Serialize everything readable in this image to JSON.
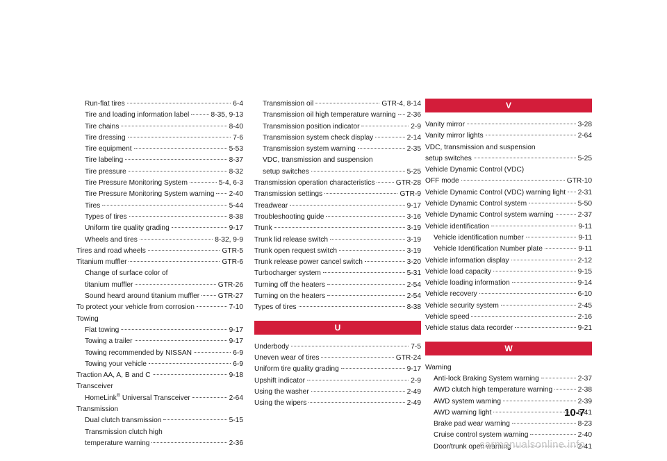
{
  "column1": [
    {
      "type": "entry",
      "indent": true,
      "label": "Run-flat tires",
      "page": "6-4"
    },
    {
      "type": "entry",
      "indent": true,
      "label": "Tire and loading information label",
      "page": "8-35, 9-13"
    },
    {
      "type": "entry",
      "indent": true,
      "label": "Tire chains",
      "page": "8-40"
    },
    {
      "type": "entry",
      "indent": true,
      "label": "Tire dressing",
      "page": "7-6"
    },
    {
      "type": "entry",
      "indent": true,
      "label": "Tire equipment",
      "page": "5-53"
    },
    {
      "type": "entry",
      "indent": true,
      "label": "Tire labeling",
      "page": "8-37"
    },
    {
      "type": "entry",
      "indent": true,
      "label": "Tire pressure",
      "page": "8-32"
    },
    {
      "type": "entry",
      "indent": true,
      "label": "Tire Pressure Monitoring System",
      "page": "5-4, 6-3"
    },
    {
      "type": "entry",
      "indent": true,
      "label": "Tire Pressure Monitoring System warning",
      "page": "2-40"
    },
    {
      "type": "entry",
      "indent": true,
      "label": "Tires",
      "page": "5-44"
    },
    {
      "type": "entry",
      "indent": true,
      "label": "Types of tires",
      "page": "8-38"
    },
    {
      "type": "entry",
      "indent": true,
      "label": "Uniform tire quality grading",
      "page": "9-17"
    },
    {
      "type": "entry",
      "indent": true,
      "label": "Wheels and tires",
      "page": "8-32, 9-9"
    },
    {
      "type": "entry",
      "indent": false,
      "label": "Tires and road wheels",
      "page": "GTR-5"
    },
    {
      "type": "entry",
      "indent": false,
      "label": "Titanium muffler",
      "page": "GTR-6"
    },
    {
      "type": "line",
      "indent": true,
      "text": "Change of surface color of"
    },
    {
      "type": "entry",
      "indent": true,
      "label": "titanium muffler",
      "page": "GTR-26"
    },
    {
      "type": "entry",
      "indent": true,
      "label": "Sound heard around titanium muffler",
      "page": "GTR-27"
    },
    {
      "type": "entry",
      "indent": false,
      "label": "To protect your vehicle from corrosion",
      "page": "7-10"
    },
    {
      "type": "line",
      "indent": false,
      "text": "Towing"
    },
    {
      "type": "entry",
      "indent": true,
      "label": "Flat towing",
      "page": "9-17"
    },
    {
      "type": "entry",
      "indent": true,
      "label": "Towing a trailer",
      "page": "9-17"
    },
    {
      "type": "entry",
      "indent": true,
      "label": "Towing recommended by NISSAN",
      "page": "6-9"
    },
    {
      "type": "entry",
      "indent": true,
      "label": "Towing your vehicle",
      "page": "6-9"
    },
    {
      "type": "entry",
      "indent": false,
      "label": "Traction AA, A, B and C",
      "page": "9-18"
    },
    {
      "type": "line",
      "indent": false,
      "text": "Transceiver"
    },
    {
      "type": "entry",
      "indent": true,
      "label": "HomeLink® Universal Transceiver",
      "page": "2-64"
    },
    {
      "type": "line",
      "indent": false,
      "text": "Transmission"
    },
    {
      "type": "entry",
      "indent": true,
      "label": "Dual clutch transmission",
      "page": "5-15"
    },
    {
      "type": "line",
      "indent": true,
      "text": "Transmission clutch high"
    },
    {
      "type": "entry",
      "indent": true,
      "label": "temperature warning",
      "page": "2-36"
    }
  ],
  "column2": [
    {
      "type": "entry",
      "indent": true,
      "label": "Transmission oil",
      "page": "GTR-4, 8-14"
    },
    {
      "type": "entry",
      "indent": true,
      "label": "Transmission oil high temperature warning",
      "page": "2-36"
    },
    {
      "type": "entry",
      "indent": true,
      "label": "Transmission position indicator",
      "page": "2-9"
    },
    {
      "type": "entry",
      "indent": true,
      "label": "Transmission system check display",
      "page": "2-14"
    },
    {
      "type": "entry",
      "indent": true,
      "label": "Transmission system warning",
      "page": "2-35"
    },
    {
      "type": "line",
      "indent": true,
      "text": "VDC, transmission and suspension"
    },
    {
      "type": "entry",
      "indent": true,
      "label": "setup switches",
      "page": "5-25"
    },
    {
      "type": "entry",
      "indent": false,
      "label": "Transmission operation characteristics",
      "page": "GTR-28"
    },
    {
      "type": "entry",
      "indent": false,
      "label": "Transmission settings",
      "page": "GTR-9"
    },
    {
      "type": "entry",
      "indent": false,
      "label": "Treadwear",
      "page": "9-17"
    },
    {
      "type": "entry",
      "indent": false,
      "label": "Troubleshooting guide",
      "page": "3-16"
    },
    {
      "type": "entry",
      "indent": false,
      "label": "Trunk",
      "page": "3-19"
    },
    {
      "type": "entry",
      "indent": false,
      "label": "Trunk lid release switch",
      "page": "3-19"
    },
    {
      "type": "entry",
      "indent": false,
      "label": "Trunk open request switch",
      "page": "3-19"
    },
    {
      "type": "entry",
      "indent": false,
      "label": "Trunk release power cancel switch",
      "page": "3-20"
    },
    {
      "type": "entry",
      "indent": false,
      "label": "Turbocharger system",
      "page": "5-31"
    },
    {
      "type": "entry",
      "indent": false,
      "label": "Turning off the heaters",
      "page": "2-54"
    },
    {
      "type": "entry",
      "indent": false,
      "label": "Turning on the heaters",
      "page": "2-54"
    },
    {
      "type": "entry",
      "indent": false,
      "label": "Types of tires",
      "page": "8-38"
    },
    {
      "type": "header",
      "text": "U"
    },
    {
      "type": "entry",
      "indent": false,
      "label": "Underbody",
      "page": "7-5"
    },
    {
      "type": "entry",
      "indent": false,
      "label": "Uneven wear of tires",
      "page": "GTR-24"
    },
    {
      "type": "entry",
      "indent": false,
      "label": "Uniform tire quality grading",
      "page": "9-17"
    },
    {
      "type": "entry",
      "indent": false,
      "label": "Upshift indicator",
      "page": "2-9"
    },
    {
      "type": "entry",
      "indent": false,
      "label": "Using the washer",
      "page": "2-49"
    },
    {
      "type": "entry",
      "indent": false,
      "label": "Using the wipers",
      "page": "2-49"
    }
  ],
  "column3": [
    {
      "type": "header",
      "text": "V",
      "first": true
    },
    {
      "type": "entry",
      "indent": false,
      "label": "Vanity mirror",
      "page": "3-28"
    },
    {
      "type": "entry",
      "indent": false,
      "label": "Vanity mirror lights",
      "page": "2-64"
    },
    {
      "type": "line",
      "indent": false,
      "text": "VDC, transmission and suspension"
    },
    {
      "type": "entry",
      "indent": false,
      "label": "setup switches",
      "page": "5-25"
    },
    {
      "type": "line",
      "indent": false,
      "text": "Vehicle Dynamic Control (VDC)"
    },
    {
      "type": "entry",
      "indent": false,
      "label": "OFF mode",
      "page": "GTR-10"
    },
    {
      "type": "entry",
      "indent": false,
      "label": "Vehicle Dynamic Control (VDC) warning light",
      "page": "2-31"
    },
    {
      "type": "entry",
      "indent": false,
      "label": "Vehicle Dynamic Control system",
      "page": "5-50"
    },
    {
      "type": "entry",
      "indent": false,
      "label": "Vehicle Dynamic Control system warning",
      "page": "2-37"
    },
    {
      "type": "entry",
      "indent": false,
      "label": "Vehicle identification",
      "page": "9-11"
    },
    {
      "type": "entry",
      "indent": true,
      "label": "Vehicle identification number",
      "page": "9-11"
    },
    {
      "type": "entry",
      "indent": true,
      "label": "Vehicle Identification Number plate",
      "page": "9-11"
    },
    {
      "type": "entry",
      "indent": false,
      "label": "Vehicle information display",
      "page": "2-12"
    },
    {
      "type": "entry",
      "indent": false,
      "label": "Vehicle load capacity",
      "page": "9-15"
    },
    {
      "type": "entry",
      "indent": false,
      "label": "Vehicle loading information",
      "page": "9-14"
    },
    {
      "type": "entry",
      "indent": false,
      "label": "Vehicle recovery",
      "page": "6-10"
    },
    {
      "type": "entry",
      "indent": false,
      "label": "Vehicle security system",
      "page": "2-45"
    },
    {
      "type": "entry",
      "indent": false,
      "label": "Vehicle speed",
      "page": "2-16"
    },
    {
      "type": "entry",
      "indent": false,
      "label": "Vehicle status data recorder",
      "page": "9-21"
    },
    {
      "type": "header",
      "text": "W"
    },
    {
      "type": "line",
      "indent": false,
      "text": "Warning"
    },
    {
      "type": "entry",
      "indent": true,
      "label": "Anti-lock Braking System warning",
      "page": "2-37"
    },
    {
      "type": "entry",
      "indent": true,
      "label": "AWD clutch high temperature warning",
      "page": "2-38"
    },
    {
      "type": "entry",
      "indent": true,
      "label": "AWD system warning",
      "page": "2-39"
    },
    {
      "type": "entry",
      "indent": true,
      "label": "AWD warning light",
      "page": "5-41"
    },
    {
      "type": "entry",
      "indent": true,
      "label": "Brake pad wear warning",
      "page": "8-23"
    },
    {
      "type": "entry",
      "indent": true,
      "label": "Cruise control system warning",
      "page": "2-40"
    },
    {
      "type": "entry",
      "indent": true,
      "label": "Door/trunk open warning",
      "page": "2-41"
    }
  ],
  "page_number": "10-7",
  "watermark": "carmanualsonline.info",
  "colors": {
    "header_bg": "#d31d3a",
    "header_text": "#ffffff",
    "text": "#1a1a1a"
  }
}
